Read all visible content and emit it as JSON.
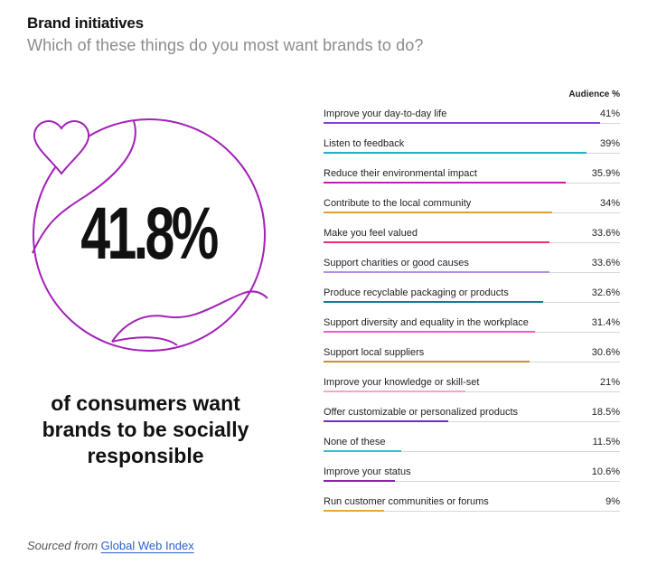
{
  "header": {
    "title": "Brand initiatives",
    "subtitle": "Which of these things do you most want brands to do?"
  },
  "hero": {
    "stat": "41.8%",
    "caption": "of consumers want brands to be socially responsible",
    "accent_color": "#a321b8"
  },
  "footer": {
    "prefix": "Sourced from",
    "link_text": "Global Web Index"
  },
  "chart_data": {
    "type": "bar",
    "orientation": "horizontal",
    "value_header": "Audience %",
    "xlim": [
      0,
      44
    ],
    "categories": [
      "Improve your day-to-day life",
      "Listen to feedback",
      "Reduce their environmental impact",
      "Contribute to the local community",
      "Make you feel valued",
      "Support charities or good causes",
      "Produce recyclable packaging or products",
      "Support diversity and equality in the workplace",
      "Support local suppliers",
      "Improve your knowledge or skill-set",
      "Offer customizable or personalized products",
      "None of these",
      "Improve your status",
      "Run customer communities or forums"
    ],
    "values": [
      41,
      39,
      35.9,
      34,
      33.6,
      33.6,
      32.6,
      31.4,
      30.6,
      21,
      18.5,
      11.5,
      10.6,
      9
    ],
    "value_labels": [
      "41%",
      "39%",
      "35.9%",
      "34%",
      "33.6%",
      "33.6%",
      "32.6%",
      "31.4%",
      "30.6%",
      "21%",
      "18.5%",
      "11.5%",
      "10.6%",
      "9%"
    ],
    "colors": [
      "#8b3fd9",
      "#19b5c4",
      "#c21fb0",
      "#e0a030",
      "#e8327c",
      "#b58fe0",
      "#0f7f8f",
      "#e85fc8",
      "#c8912a",
      "#f4a6c9",
      "#6a31c4",
      "#2ec4d0",
      "#8a24a8",
      "#e8a63a"
    ]
  }
}
